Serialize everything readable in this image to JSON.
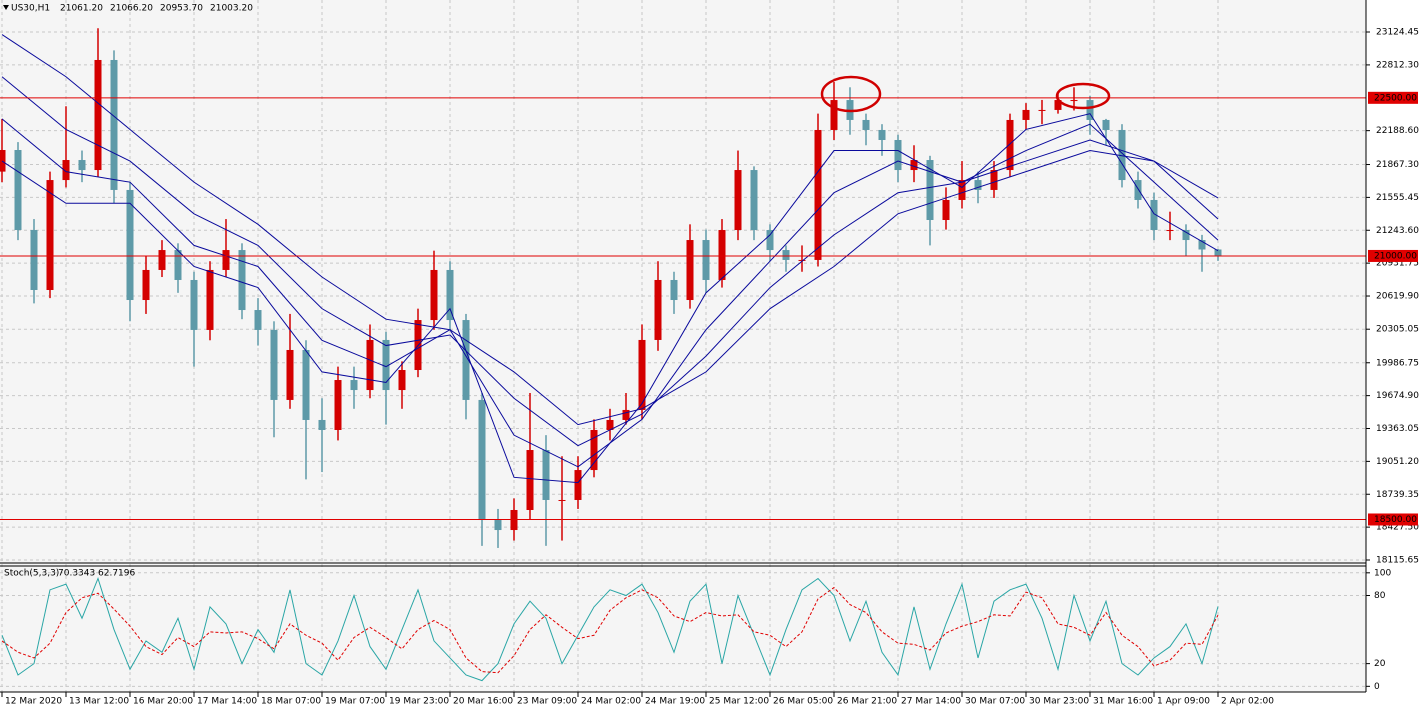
{
  "chart_data": {
    "type": "candlestick",
    "header": {
      "symbol": "US30,H1",
      "values": [
        21061.2,
        21066.2,
        20953.7,
        21003.2
      ],
      "value_labels": [
        "21061.20",
        "21066.20",
        "20953.70",
        "21003.20"
      ]
    },
    "categories": [
      "12 Mar 2020",
      null,
      null,
      null,
      "13 Mar 12:00",
      null,
      null,
      null,
      "16 Mar 20:00",
      null,
      null,
      null,
      "17 Mar 14:00",
      null,
      null,
      null,
      "18 Mar 07:00",
      null,
      null,
      null,
      "19 Mar 07:00",
      null,
      null,
      null,
      "19 Mar 23:00",
      null,
      null,
      null,
      "20 Mar 16:00",
      null,
      null,
      null,
      "23 Mar 09:00",
      null,
      null,
      null,
      "24 Mar 02:00",
      null,
      null,
      null,
      "24 Mar 19:00",
      null,
      null,
      null,
      "25 Mar 12:00",
      null,
      null,
      null,
      "26 Mar 05:00",
      null,
      null,
      null,
      "26 Mar 21:00",
      null,
      null,
      null,
      "27 Mar 14:00",
      null,
      null,
      null,
      "30 Mar 07:00",
      null,
      null,
      null,
      "30 Mar 23:00",
      null,
      null,
      null,
      "31 Mar 16:00",
      null,
      null,
      null,
      "1 Apr 09:00",
      null,
      null,
      null,
      "2 Apr 02:00"
    ],
    "open": [
      21800,
      22005,
      21246,
      20677,
      21720,
      21910,
      21815,
      22859,
      21626,
      20582,
      20867,
      21056,
      20772,
      20298,
      20867,
      21056,
      20487,
      20298,
      19634,
      20108,
      19444,
      19349,
      19823,
      19728,
      20203,
      19728,
      19918,
      20392,
      20867,
      20392,
      19634,
      18495,
      18400,
      18590,
      19159,
      18685,
      18685,
      18969,
      19349,
      19444,
      19539,
      20203,
      20772,
      20582,
      21151,
      20772,
      21246,
      21815,
      21246,
      21056,
      20962,
      20962,
      22195,
      22479,
      22290,
      22195,
      22100,
      21815,
      21910,
      21341,
      21531,
      21720,
      21626,
      21815,
      22290,
      22385,
      22385,
      22479,
      22479,
      22290,
      22195,
      21720,
      21531,
      21246,
      21246,
      21151,
      21061.2
    ],
    "high": [
      22300,
      22080,
      21350,
      21800,
      22420,
      22000,
      23160,
      22950,
      21700,
      21000,
      21150,
      21120,
      20850,
      20950,
      21350,
      21120,
      20600,
      20380,
      20450,
      20200,
      19650,
      19950,
      19950,
      20350,
      20280,
      20000,
      20500,
      21050,
      20950,
      20450,
      19700,
      18600,
      18700,
      19700,
      19300,
      19100,
      19100,
      19450,
      19550,
      19700,
      20350,
      20950,
      20850,
      21300,
      21250,
      21350,
      22000,
      21850,
      21300,
      21100,
      21100,
      22350,
      22650,
      22600,
      22350,
      22250,
      22150,
      22050,
      21950,
      21650,
      21900,
      21800,
      21900,
      22350,
      22450,
      22480,
      22560,
      22600,
      22520,
      22300,
      22250,
      21800,
      21600,
      21420,
      21300,
      21200,
      21066.2
    ],
    "low": [
      21700,
      21150,
      20550,
      20600,
      21650,
      21700,
      21750,
      21500,
      20380,
      20450,
      20800,
      20650,
      19950,
      20200,
      20800,
      20400,
      20150,
      19280,
      19550,
      18880,
      18950,
      19250,
      19550,
      19650,
      19400,
      19550,
      19850,
      20300,
      20300,
      19450,
      18250,
      18230,
      18300,
      18500,
      18250,
      18300,
      18600,
      18900,
      19250,
      19400,
      19450,
      20100,
      20450,
      20500,
      20650,
      20700,
      21150,
      21150,
      20950,
      20850,
      20850,
      20900,
      22100,
      22150,
      22050,
      21950,
      21700,
      21700,
      21100,
      21250,
      21450,
      21500,
      21550,
      21750,
      22200,
      22250,
      22350,
      22380,
      22150,
      22050,
      21650,
      21450,
      21150,
      21150,
      21000,
      20850,
      20953.7
    ],
    "close": [
      22005,
      21246,
      20677,
      21720,
      21910,
      21815,
      22859,
      21626,
      20582,
      20867,
      21056,
      20772,
      20298,
      20867,
      21056,
      20487,
      20298,
      19634,
      20108,
      19444,
      19349,
      19823,
      19728,
      20203,
      19728,
      19918,
      20392,
      20867,
      20392,
      19634,
      18495,
      18400,
      18590,
      19159,
      18685,
      18685,
      18969,
      19349,
      19444,
      19539,
      20203,
      20772,
      20582,
      21151,
      20772,
      21246,
      21815,
      21246,
      21056,
      20962,
      20962,
      22195,
      22479,
      22290,
      22195,
      22100,
      21815,
      21910,
      21341,
      21531,
      21720,
      21626,
      21815,
      22290,
      22385,
      22385,
      22479,
      22479,
      22290,
      22195,
      21720,
      21531,
      21246,
      21246,
      21151,
      21061.2,
      21003.2
    ],
    "up_color": "#d40000",
    "down_color": "#5e9aa8",
    "ylim": [
      18096.7,
      23428
    ],
    "yticks": [
      {
        "value": 23124.45,
        "label": "23124.45"
      },
      {
        "value": 22812.3,
        "label": "22812.30"
      },
      {
        "value": 22188.6,
        "label": "22188.60"
      },
      {
        "value": 21867.3,
        "label": "21867.30"
      },
      {
        "value": 21555.45,
        "label": "21555.45"
      },
      {
        "value": 21243.6,
        "label": "21243.60"
      },
      {
        "value": 20931.75,
        "label": "20931.75"
      },
      {
        "value": 20619.9,
        "label": "20619.90"
      },
      {
        "value": 20305.05,
        "label": "20305.05"
      },
      {
        "value": 19986.75,
        "label": "19986.75"
      },
      {
        "value": 19674.9,
        "label": "19674.90"
      },
      {
        "value": 19363.05,
        "label": "19363.05"
      },
      {
        "value": 19051.2,
        "label": "19051.20"
      },
      {
        "value": 18739.35,
        "label": "18739.35"
      },
      {
        "value": 18427.5,
        "label": "18427.50"
      },
      {
        "value": 18115.65,
        "label": "18115.65"
      }
    ],
    "grid": true,
    "levels": [
      {
        "value": 22500,
        "label": "22500.00"
      },
      {
        "value": 21000,
        "label": "21000.00"
      },
      {
        "value": 18500,
        "label": "18500.00"
      }
    ],
    "level_color": "#e00000",
    "ma": {
      "color": "#0a0a9c",
      "x": [
        0,
        4,
        8,
        12,
        16,
        20,
        24,
        28,
        32,
        36,
        40,
        44,
        48,
        52,
        56,
        60,
        64,
        68,
        72,
        76
      ],
      "series": [
        {
          "values": [
            21900,
            21500,
            21500,
            20900,
            20700,
            19900,
            19800,
            20500,
            18900,
            18850,
            19600,
            20650,
            21200,
            22000,
            22000,
            21650,
            22200,
            22350,
            21400,
            21050
          ]
        },
        {
          "values": [
            22300,
            21800,
            21700,
            21100,
            20900,
            20200,
            19950,
            20300,
            19300,
            19000,
            19450,
            20300,
            20950,
            21600,
            21900,
            21700,
            22000,
            22250,
            21700,
            21150
          ]
        },
        {
          "values": [
            22700,
            22200,
            21900,
            21400,
            21100,
            20500,
            20150,
            20250,
            19650,
            19200,
            19500,
            20050,
            20700,
            21200,
            21600,
            21700,
            21900,
            22100,
            21900,
            21350
          ]
        },
        {
          "values": [
            23100,
            22700,
            22200,
            21700,
            21300,
            20800,
            20400,
            20300,
            19900,
            19400,
            19550,
            19900,
            20500,
            20900,
            21400,
            21600,
            21800,
            22000,
            21900,
            21550
          ]
        }
      ]
    },
    "stoch": {
      "title": "Stoch(5,3,3)",
      "values": [
        70.3343,
        62.7196
      ],
      "value_labels": [
        "70.3343",
        "62.7196"
      ],
      "ylim": [
        -5,
        106
      ],
      "yticks": [
        0,
        20,
        80,
        100
      ],
      "main": {
        "color": "#2aa6a6",
        "values": [
          45,
          10,
          20,
          85,
          90,
          60,
          95,
          50,
          15,
          40,
          30,
          60,
          15,
          70,
          55,
          20,
          50,
          30,
          85,
          20,
          10,
          40,
          80,
          35,
          15,
          50,
          85,
          40,
          25,
          10,
          5,
          20,
          55,
          75,
          60,
          20,
          45,
          70,
          85,
          80,
          90,
          65,
          30,
          75,
          90,
          20,
          80,
          45,
          10,
          50,
          85,
          95,
          80,
          40,
          75,
          30,
          10,
          70,
          15,
          55,
          90,
          25,
          75,
          85,
          90,
          60,
          15,
          80,
          40,
          75,
          20,
          10,
          25,
          35,
          55,
          20,
          70.3343
        ]
      },
      "signal": {
        "color": "#e00000",
        "values": [
          40,
          30,
          25,
          38,
          65,
          78,
          82,
          68,
          53,
          35,
          28,
          43,
          35,
          48,
          47,
          48,
          42,
          33,
          55,
          45,
          38,
          23,
          43,
          52,
          43,
          33,
          50,
          58,
          50,
          25,
          13,
          12,
          27,
          50,
          63,
          52,
          42,
          45,
          67,
          78,
          85,
          78,
          62,
          57,
          65,
          62,
          63,
          48,
          45,
          35,
          48,
          77,
          87,
          72,
          65,
          48,
          38,
          37,
          32,
          47,
          53,
          57,
          63,
          62,
          83,
          78,
          55,
          52,
          45,
          65,
          45,
          35,
          18,
          23,
          38,
          37,
          62.7196
        ]
      }
    }
  }
}
